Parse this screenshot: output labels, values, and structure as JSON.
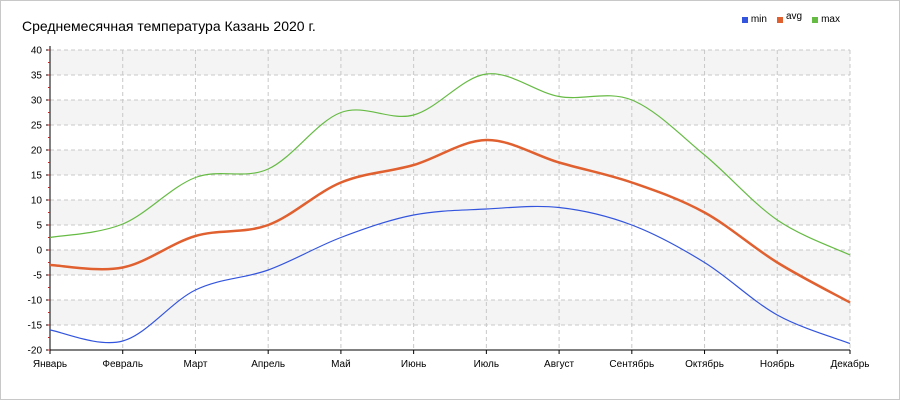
{
  "chart_data": {
    "type": "line",
    "title": "Среднемесячная температура Казань  2020 г.",
    "xlabel": "",
    "ylabel": "",
    "categories": [
      "Январь",
      "Февраль",
      "Март",
      "Апрель",
      "Май",
      "Июнь",
      "Июль",
      "Август",
      "Сентябрь",
      "Октябрь",
      "Ноябрь",
      "Декабрь"
    ],
    "ylim": [
      -20,
      40
    ],
    "yticks": [
      -20,
      -15,
      -10,
      -5,
      0,
      5,
      10,
      15,
      20,
      25,
      30,
      35,
      40
    ],
    "grid": true,
    "legend_position": "top-right",
    "series": [
      {
        "name": "min",
        "color": "#3355dd",
        "values": [
          -16,
          -18.2,
          -8,
          -4,
          2.5,
          7,
          8.2,
          8.5,
          5,
          -2.5,
          -13,
          -18.7
        ]
      },
      {
        "name": "avg",
        "color": "#e06030",
        "values": [
          -3,
          -3.5,
          2.8,
          5,
          13.5,
          17,
          22,
          17.5,
          13.5,
          7.5,
          -2.5,
          -10.5
        ]
      },
      {
        "name": "max",
        "color": "#66bb44",
        "values": [
          2.5,
          5.2,
          14.5,
          16.2,
          27.5,
          27,
          35.2,
          30.7,
          30,
          19,
          6,
          -1
        ]
      }
    ]
  }
}
